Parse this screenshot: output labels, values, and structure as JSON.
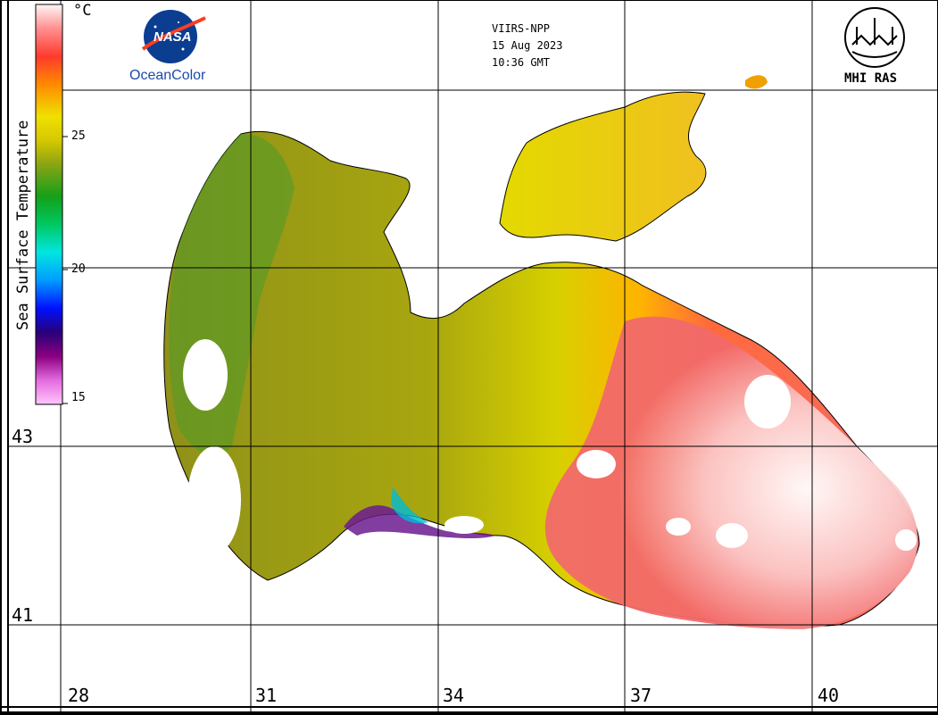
{
  "header": {
    "sensor": "VIIRS-NPP",
    "date": "15 Aug 2023",
    "time": "10:36 GMT"
  },
  "logos": {
    "nasa_wordmark": "NASA",
    "nasa_caption": "OceanColor",
    "institute": "MHI RAS"
  },
  "colorbar": {
    "title": "Sea Surface Temperature",
    "unit": "°C",
    "ticks": [
      "25",
      "20",
      "15"
    ],
    "range": [
      15,
      30
    ],
    "colors": [
      "#ff9ff7",
      "#d84fd8",
      "#7a006f",
      "#1c0070",
      "#0a1aff",
      "#00a6ff",
      "#00e8d8",
      "#00cf60",
      "#219c12",
      "#6f9812",
      "#c8c400",
      "#e8df00",
      "#ff8c00",
      "#ff3c2c",
      "#ff8080",
      "#fff2f2"
    ]
  },
  "grid": {
    "latitudes": [
      "43",
      "41"
    ],
    "longitudes": [
      "28",
      "31",
      "34",
      "37",
      "40"
    ]
  },
  "legend_colors": {
    "land": "#ffffff",
    "coast": "#000000",
    "cloud": "#ffffff"
  }
}
